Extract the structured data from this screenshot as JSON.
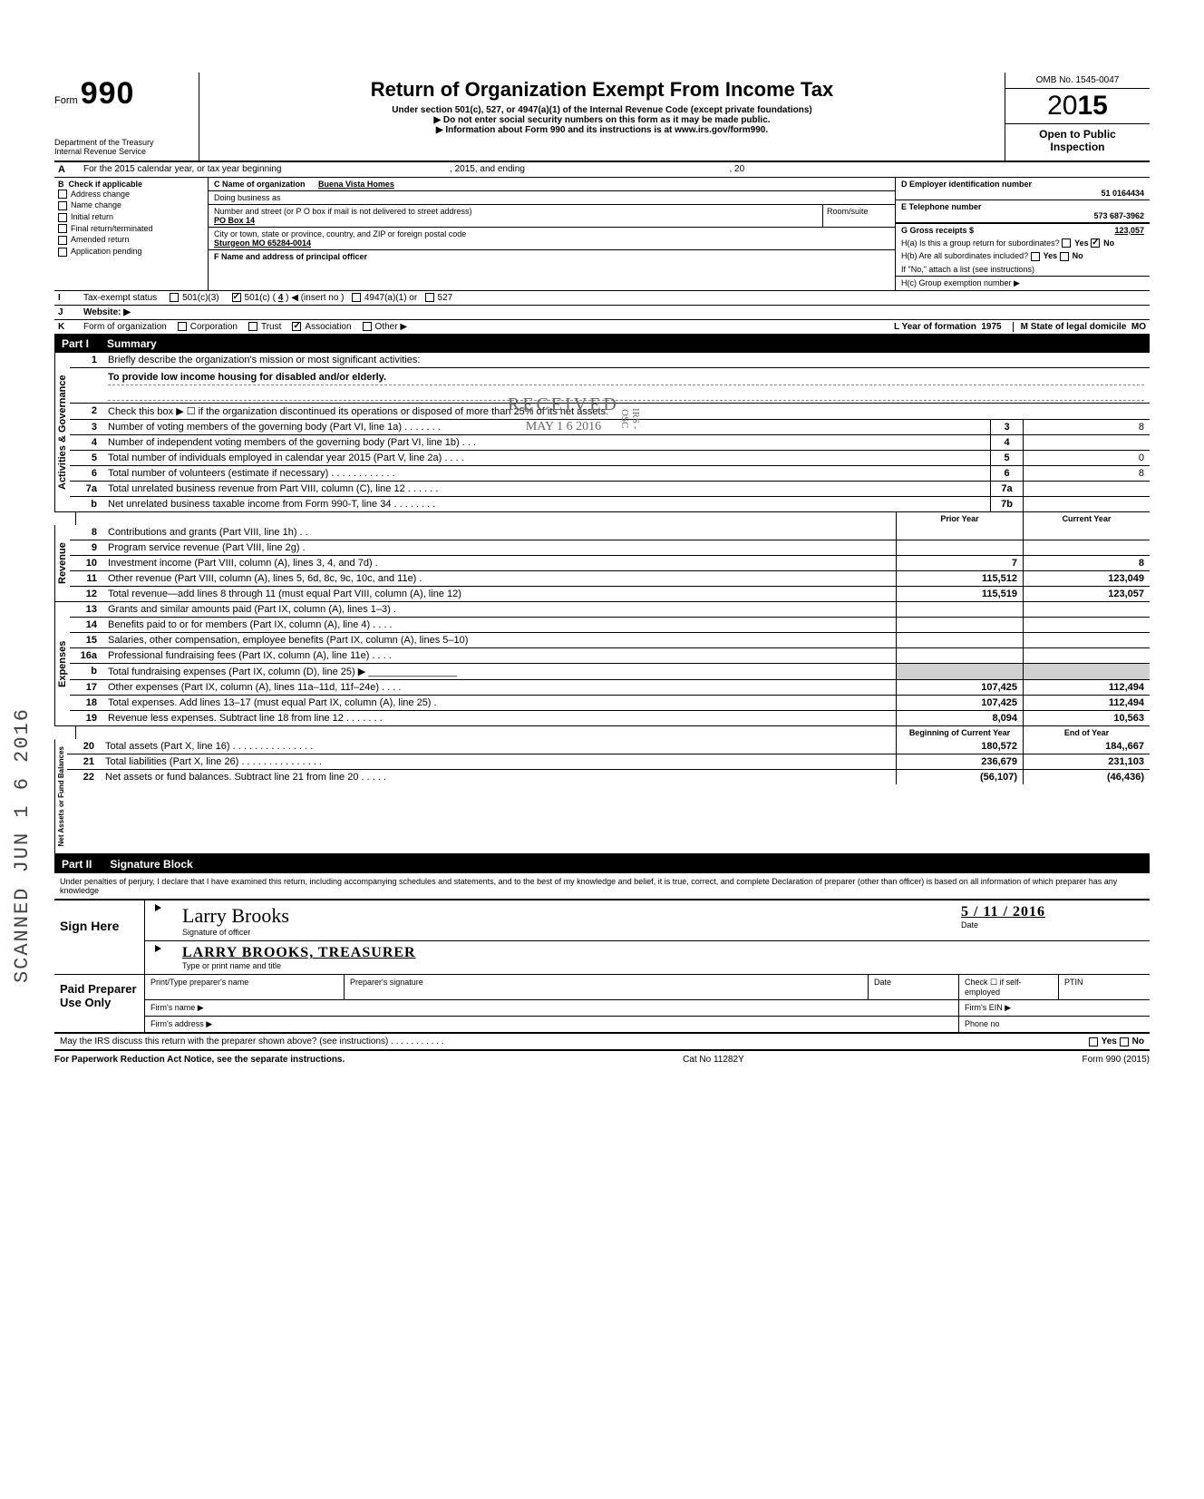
{
  "meta": {
    "omb": "OMB No. 1545-0047",
    "year_prefix": "20",
    "year_suffix": "15",
    "open": "Open to Public",
    "inspection": "Inspection",
    "form_no": "990",
    "title": "Return of Organization Exempt From Income Tax",
    "subtitle": "Under section 501(c), 527, or 4947(a)(1) of the Internal Revenue Code (except private foundations)",
    "warn1": "▶ Do not enter social security numbers on this form as it may be made public.",
    "warn2": "▶ Information about Form 990 and its instructions is at www.irs.gov/form990.",
    "dept1": "Department of the Treasury",
    "dept2": "Internal Revenue Service"
  },
  "rowA": {
    "label": "A",
    "text_pre": "For the 2015 calendar year, or tax year beginning",
    "text_mid": ", 2015, and ending",
    "text_end": ", 20"
  },
  "colB": {
    "label": "B",
    "hdr": "Check if applicable",
    "items": [
      "Address change",
      "Name change",
      "Initial return",
      "Final return/terminated",
      "Amended return",
      "Application pending"
    ]
  },
  "colC": {
    "c_label": "C Name of organization",
    "c_val": "Buena Vista Homes",
    "dba": "Doing business as",
    "street_lbl": "Number and street (or P O  box if mail is not delivered to street address)",
    "street_val": "PO Box 14",
    "room_lbl": "Room/suite",
    "city_lbl": "City or town, state or province, country, and ZIP or foreign postal code",
    "city_val": "Sturgeon MO  65284-0014",
    "f_label": "F Name and address of principal officer"
  },
  "colD": {
    "d_lbl": "D Employer identification number",
    "d_val": "51 0164434",
    "e_lbl": "E Telephone number",
    "e_val": "573 687-3962",
    "g_lbl": "G Gross receipts $",
    "g_val": "123,057",
    "h4a": "H(a) Is this a group return for subordinates?",
    "h4b": "H(b) Are all subordinates included?",
    "h4b2": "If \"No,\" attach a list  (see instructions)",
    "h4c": "H(c) Group exemption number ▶",
    "yes": "Yes",
    "no": "No"
  },
  "rowI": {
    "label": "I",
    "txt": "Tax-exempt status",
    "o1": "501(c)(3)",
    "o2": "501(c) (",
    "o2n": "4",
    "o2post": ")  ◀ (insert no )",
    "o3": "4947(a)(1) or",
    "o4": "527"
  },
  "rowJ": {
    "label": "J",
    "txt": "Website: ▶"
  },
  "rowK": {
    "label": "K",
    "txt": "Form of organization",
    "opts": [
      "Corporation",
      "Trust",
      "Association",
      "Other ▶"
    ],
    "checked_idx": 2,
    "l_lbl": "L Year of formation",
    "l_val": "1975",
    "m_lbl": "M State of legal domicile",
    "m_val": "MO"
  },
  "part1": {
    "num": "Part I",
    "title": "Summary"
  },
  "gov": {
    "label": "Activities & Governance",
    "rows": [
      {
        "n": "1",
        "d": "Briefly describe the organization's mission or most significant activities:"
      },
      {
        "n": "",
        "d_mission": "To provide low income housing for disabled and/or elderly."
      },
      {
        "n": "2",
        "d": "Check this box ▶ ☐ if the organization discontinued its operations or disposed of more than 25% of its net assets."
      },
      {
        "n": "3",
        "d": "Number of voting members of the governing body (Part VI, line 1a) . . . . . . .",
        "box": "3",
        "val": "8"
      },
      {
        "n": "4",
        "d": "Number of independent voting members of the governing body (Part VI, line 1b) . . .",
        "box": "4",
        "val": ""
      },
      {
        "n": "5",
        "d": "Total number of individuals employed in calendar year 2015 (Part V, line 2a)    . . . .",
        "box": "5",
        "val": "0"
      },
      {
        "n": "6",
        "d": "Total number of volunteers (estimate if necessary)    . . . . . . . . . . . .",
        "box": "6",
        "val": "8"
      },
      {
        "n": "7a",
        "d": "Total unrelated business revenue from Part VIII, column (C), line 12   . . . . . .",
        "box": "7a",
        "val": ""
      },
      {
        "n": "b",
        "d": "Net unrelated business taxable income from Form 990-T, line 34 . . . . . . . .",
        "box": "7b",
        "val": ""
      }
    ]
  },
  "hdr_cols": {
    "prior": "Prior Year",
    "curr": "Current Year"
  },
  "rev": {
    "label": "Revenue",
    "rows": [
      {
        "n": "8",
        "d": "Contributions and grants (Part VIII, line 1h) .  .",
        "p": "",
        "c": ""
      },
      {
        "n": "9",
        "d": "Program service revenue (Part VIII, line 2g) .",
        "p": "",
        "c": ""
      },
      {
        "n": "10",
        "d": "Investment income (Part VIII, column (A), lines 3, 4, and 7d) .",
        "p": "7",
        "c": "8"
      },
      {
        "n": "11",
        "d": "Other revenue (Part VIII, column (A), lines 5, 6d, 8c, 9c, 10c, and 11e) .",
        "p": "115,512",
        "c": "123,049"
      },
      {
        "n": "12",
        "d": "Total revenue—add lines 8 through 11 (must equal Part VIII, column (A), line 12)",
        "p": "115,519",
        "c": "123,057"
      }
    ]
  },
  "exp": {
    "label": "Expenses",
    "rows": [
      {
        "n": "13",
        "d": "Grants and similar amounts paid (Part IX, column (A), lines 1–3) .",
        "p": "",
        "c": ""
      },
      {
        "n": "14",
        "d": "Benefits paid to or for members (Part IX, column (A), line 4)   . . . .",
        "p": "",
        "c": ""
      },
      {
        "n": "15",
        "d": "Salaries, other compensation, employee benefits (Part IX, column (A), lines 5–10)",
        "p": "",
        "c": ""
      },
      {
        "n": "16a",
        "d": "Professional fundraising fees (Part IX, column (A),  line 11e)  . . . .",
        "p": "",
        "c": ""
      },
      {
        "n": "b",
        "d": "Total fundraising expenses (Part IX, column (D), line 25) ▶  ________________",
        "p_shade": true,
        "c_shade": true
      },
      {
        "n": "17",
        "d": "Other expenses (Part IX, column (A), lines 11a–11d, 11f–24e)    . . . .",
        "p": "107,425",
        "c": "112,494"
      },
      {
        "n": "18",
        "d": "Total expenses. Add lines 13–17 (must equal Part IX, column (A), line 25)   .",
        "p": "107,425",
        "c": "112,494"
      },
      {
        "n": "19",
        "d": "Revenue less expenses. Subtract line 18 from line 12  . . . . . . .",
        "p": "8,094",
        "c": "10,563"
      }
    ]
  },
  "na": {
    "label": "Net Assets or Fund Balances",
    "hdr_p": "Beginning of Current Year",
    "hdr_c": "End of Year",
    "rows": [
      {
        "n": "20",
        "d": "Total assets (Part X, line 16)    . . . . . . . . . . . . . . .",
        "p": "180,572",
        "c": "184,,667"
      },
      {
        "n": "21",
        "d": "Total liabilities (Part X, line 26) . . . . . . . . . . . . . . .",
        "p": "236,679",
        "c": "231,103"
      },
      {
        "n": "22",
        "d": "Net assets or fund balances. Subtract line 21 from line 20   . . . . .",
        "p": "(56,107)",
        "c": "(46,436)"
      }
    ]
  },
  "part2": {
    "num": "Part II",
    "title": "Signature Block"
  },
  "perjury": "Under penalties of perjury, I declare that I have examined this return, including accompanying schedules and statements, and to the best of my knowledge  and belief, it is true, correct, and complete  Declaration of preparer (other than officer) is based on all information of which preparer has any knowledge",
  "sign": {
    "here": "Sign Here",
    "sig_script": "Larry Brooks",
    "sig_lbl": "Signature of officer",
    "date_lbl": "Date",
    "date_val": "5 / 11 / 2016",
    "name_caps": "LARRY  BROOKS,   TREASURER",
    "name_lbl": "Type or print name and title"
  },
  "prep": {
    "left": "Paid Preparer Use Only",
    "r1": [
      "Print/Type preparer's name",
      "Preparer's signature",
      "Date",
      "Check ☐ if self-employed",
      "PTIN"
    ],
    "r2a": "Firm's name    ▶",
    "r2b": "Firm's EIN  ▶",
    "r3a": "Firm's address ▶",
    "r3b": "Phone no",
    "irs": "May the IRS discuss this return with the preparer shown above? (see instructions)   . . . . . . . . . . .",
    "yes": "Yes",
    "no": "No"
  },
  "footer": {
    "left": "For Paperwork Reduction Act Notice, see the separate instructions.",
    "mid": "Cat  No  11282Y",
    "right": "Form 990 (2015)"
  },
  "stamps": {
    "side": "SCANNED JUN 1 6 2016",
    "recv": "RECEIVED",
    "recv_date": "MAY 1 6 2016",
    "recv_org": "IRS - OSC"
  }
}
